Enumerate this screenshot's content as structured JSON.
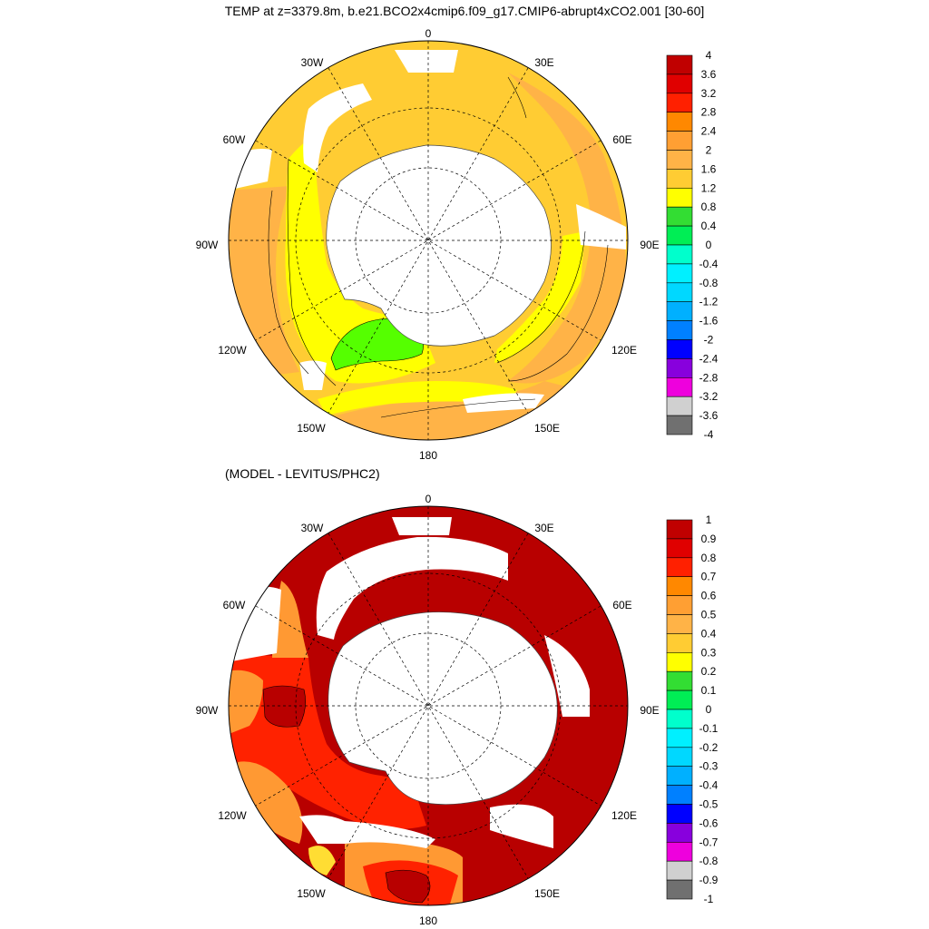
{
  "title": "TEMP at z=3379.8m, b.e21.BCO2x4cmip6.f09_g17.CMIP6-abrupt4xCO2.001 [30-60]",
  "subtitle": "(MODEL - LEVITUS/PHC2)",
  "longitude_labels": {
    "lon_0": "0",
    "lon_30E": "30E",
    "lon_60E": "60E",
    "lon_90E": "90E",
    "lon_120E": "120E",
    "lon_150E": "150E",
    "lon_180": "180",
    "lon_150W": "150W",
    "lon_120W": "120W",
    "lon_90W": "90W",
    "lon_60W": "60W",
    "lon_30W": "30W"
  },
  "colorbar_top": {
    "labels": [
      "4",
      "3.6",
      "3.2",
      "2.8",
      "2.4",
      "2",
      "1.6",
      "1.2",
      "0.8",
      "0.4",
      "0",
      "-0.4",
      "-0.8",
      "-1.2",
      "-1.6",
      "-2",
      "-2.4",
      "-2.8",
      "-3.2",
      "-3.6",
      "-4"
    ],
    "colors": [
      "#c00000",
      "#e00000",
      "#ff2000",
      "#ff8800",
      "#ff9f33",
      "#ffb347",
      "#ffcc33",
      "#ffff00",
      "#33dd33",
      "#00ee55",
      "#00ffcc",
      "#00f0ff",
      "#00d8ff",
      "#00b0ff",
      "#0080ff",
      "#0000ff",
      "#8800dd",
      "#ee00dd",
      "#d0d0d0",
      "#707070"
    ]
  },
  "colorbar_bottom": {
    "labels": [
      "1",
      "0.9",
      "0.8",
      "0.7",
      "0.6",
      "0.5",
      "0.4",
      "0.3",
      "0.2",
      "0.1",
      "0",
      "-0.1",
      "-0.2",
      "-0.3",
      "-0.4",
      "-0.5",
      "-0.6",
      "-0.7",
      "-0.8",
      "-0.9",
      "-1"
    ],
    "colors": [
      "#c00000",
      "#e00000",
      "#ff2000",
      "#ff8800",
      "#ff9f33",
      "#ffb347",
      "#ffcc33",
      "#ffff00",
      "#33dd33",
      "#00ee55",
      "#00ffcc",
      "#00f0ff",
      "#00d8ff",
      "#00b0ff",
      "#0080ff",
      "#0000ff",
      "#8800dd",
      "#ee00dd",
      "#d0d0d0",
      "#707070"
    ]
  },
  "colors": {
    "land": "#ffffff",
    "ocean_mask": "#ffffff",
    "top_warm": "#ffcc33",
    "top_orange": "#ffb347",
    "top_yellow": "#ffff00",
    "top_green": "#55ff00",
    "bottom_dark_red": "#b80000",
    "bottom_red": "#ff2200",
    "bottom_orange": "#ff9933",
    "bottom_yellow": "#ffdd33"
  }
}
